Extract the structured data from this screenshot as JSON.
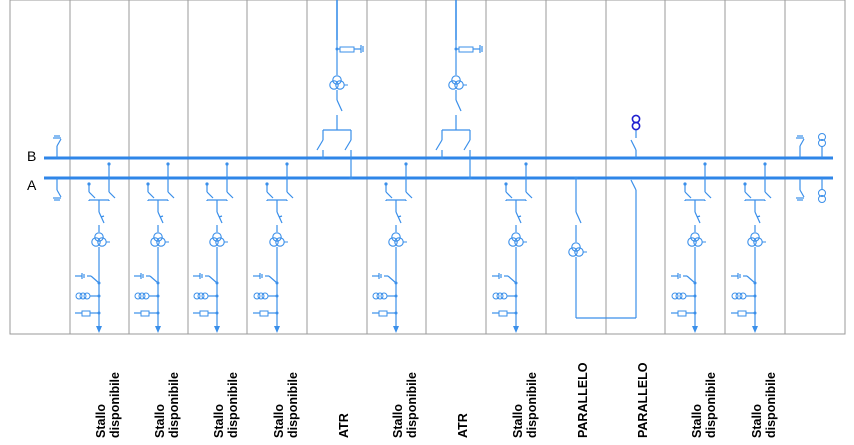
{
  "busbars": [
    {
      "id": "B",
      "label": "B"
    },
    {
      "id": "A",
      "label": "A"
    }
  ],
  "bays": [
    {
      "type": "available",
      "line1": "Stallo",
      "line2": "disponibile"
    },
    {
      "type": "available",
      "line1": "Stallo",
      "line2": "disponibile"
    },
    {
      "type": "available",
      "line1": "Stallo",
      "line2": "disponibile"
    },
    {
      "type": "available",
      "line1": "Stallo",
      "line2": "disponibile"
    },
    {
      "type": "atr",
      "line1": "ATR",
      "line2": ""
    },
    {
      "type": "available",
      "line1": "Stallo",
      "line2": "disponibile"
    },
    {
      "type": "atr",
      "line1": "ATR",
      "line2": ""
    },
    {
      "type": "available",
      "line1": "Stallo",
      "line2": "disponibile"
    },
    {
      "type": "parallel",
      "line1": "PARALLELO",
      "line2": ""
    },
    {
      "type": "parallel",
      "line1": "PARALLELO",
      "line2": ""
    },
    {
      "type": "available",
      "line1": "Stallo",
      "line2": "disponibile"
    },
    {
      "type": "available",
      "line1": "Stallo",
      "line2": "disponibile"
    }
  ],
  "colors": {
    "bus": "#2f86e8",
    "equipment": "#3a8fea",
    "frame": "#9a9a9a",
    "highlight": "#1f1fd0"
  },
  "icons": [
    "disconnector-icon",
    "breaker-icon",
    "current-transformer-icon",
    "voltage-transformer-icon",
    "earthing-switch-icon",
    "arrow-down-icon",
    "surge-arrester-icon"
  ]
}
